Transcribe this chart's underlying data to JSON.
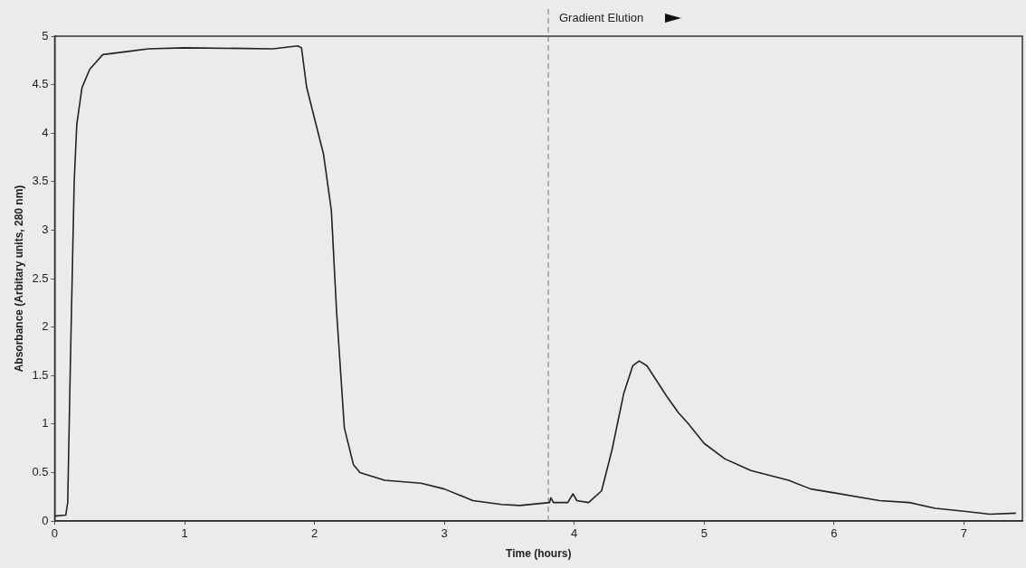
{
  "chart_data": {
    "type": "line",
    "xlabel": "Time (hours)",
    "ylabel": "Absorbance (Arbitary units, 280 nm)",
    "x": [
      0,
      0.085,
      0.1,
      0.12,
      0.15,
      0.17,
      0.21,
      0.27,
      0.37,
      0.55,
      0.72,
      1.0,
      1.68,
      1.87,
      1.9,
      1.94,
      2.07,
      2.13,
      2.17,
      2.23,
      2.3,
      2.35,
      2.54,
      2.82,
      3.0,
      3.22,
      3.44,
      3.58,
      3.81,
      3.82,
      3.84,
      3.95,
      3.99,
      4.02,
      4.11,
      4.21,
      4.29,
      4.38,
      4.45,
      4.5,
      4.56,
      4.71,
      4.8,
      4.88,
      5.0,
      5.16,
      5.36,
      5.65,
      5.82,
      6.0,
      6.35,
      6.58,
      6.78,
      7.0,
      7.2,
      7.4
    ],
    "series": [
      {
        "color": "#222222",
        "values": [
          0.05,
          0.06,
          0.19,
          1.58,
          3.5,
          4.09,
          4.47,
          4.66,
          4.81,
          4.84,
          4.87,
          4.88,
          4.87,
          4.9,
          4.88,
          4.47,
          3.78,
          3.2,
          2.16,
          0.96,
          0.58,
          0.5,
          0.42,
          0.39,
          0.33,
          0.21,
          0.17,
          0.16,
          0.19,
          0.24,
          0.19,
          0.19,
          0.28,
          0.21,
          0.19,
          0.31,
          0.73,
          1.31,
          1.6,
          1.65,
          1.6,
          1.29,
          1.12,
          1.0,
          0.8,
          0.64,
          0.52,
          0.42,
          0.33,
          0.29,
          0.21,
          0.19,
          0.13,
          0.1,
          0.07,
          0.08
        ]
      }
    ],
    "xlim": [
      0,
      7.45
    ],
    "xticks": [
      0,
      1,
      2,
      3,
      4,
      5,
      6,
      7
    ],
    "ylim": [
      0,
      5
    ],
    "yticks": [
      0,
      {
        "value": 0.5,
        "label": "0.5"
      },
      1,
      {
        "value": 1.5,
        "label": "1.5"
      },
      2,
      {
        "value": 2.5,
        "label": "2.5"
      },
      3,
      {
        "value": 3.5,
        "label": "3.5"
      },
      4,
      {
        "value": 4.5,
        "label": "4.5"
      },
      5
    ],
    "grid": false,
    "legend": false,
    "marker": "none",
    "line_style": "solid",
    "ref_lines": [
      {
        "axis": "x",
        "value": 3.8,
        "label": "Gradient Elution",
        "line_style": "dashed",
        "color": "#777777"
      }
    ]
  }
}
